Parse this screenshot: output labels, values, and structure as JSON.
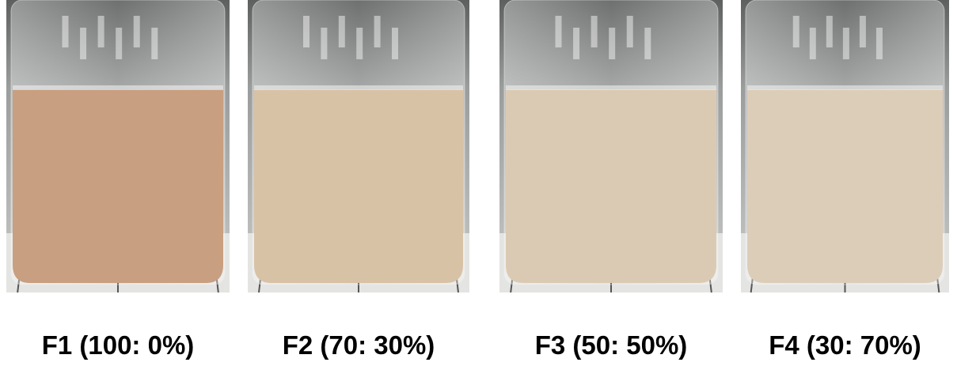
{
  "panels": [
    {
      "label": "F1 (100: 0%)"
    },
    {
      "label": "F2 (70: 30%)"
    },
    {
      "label": "F3 (50: 50%)"
    },
    {
      "label": "F4 (30: 70%)"
    }
  ]
}
